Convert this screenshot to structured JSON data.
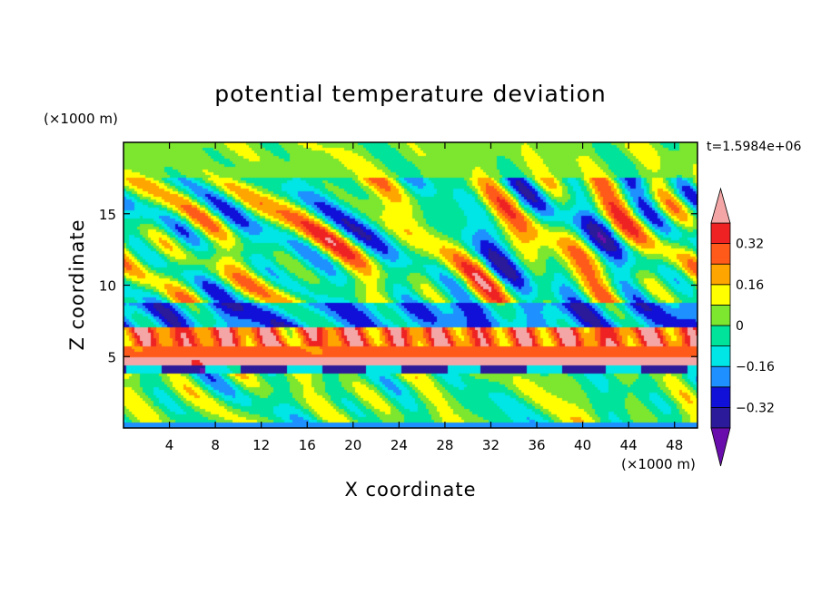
{
  "chart_data": {
    "type": "heatmap",
    "title": "potential temperature deviation",
    "xlabel": "X coordinate",
    "ylabel": "Z coordinate",
    "x_unit": "(×1000 m)",
    "y_unit": "(×1000 m)",
    "time_label": "t=1.5984e+06",
    "xlim": [
      0,
      50
    ],
    "ylim": [
      0,
      20
    ],
    "x_ticks": [
      4,
      8,
      12,
      16,
      20,
      24,
      28,
      32,
      36,
      40,
      44,
      48
    ],
    "y_ticks": [
      5,
      10,
      15
    ],
    "colorbar": {
      "levels": [
        -0.4,
        -0.32,
        -0.24,
        -0.16,
        -0.08,
        0,
        0.08,
        0.16,
        0.24,
        0.32,
        0.4
      ],
      "tick_values": [
        0.32,
        0.16,
        0,
        -0.16,
        -0.32
      ],
      "tick_labels": [
        "0.32",
        "0.16",
        "0",
        "−0.16",
        "−0.32"
      ],
      "extend": "both",
      "colors": [
        "#6a0dad",
        "#2b1a99",
        "#1010d8",
        "#1e90ff",
        "#00e5e5",
        "#00e39a",
        "#7de62e",
        "#ffff00",
        "#ffa500",
        "#ff5a1a",
        "#ee2222",
        "#f4a6a6"
      ]
    },
    "layers": [
      {
        "z": [
          0.0,
          0.4
        ],
        "description": "surface band",
        "value": -0.2
      },
      {
        "z": [
          0.4,
          3.8
        ],
        "description": "lower turbulent layer",
        "value_range": [
          -0.3,
          0.35
        ]
      },
      {
        "z": [
          3.8,
          5.0
        ],
        "description": "cold band",
        "value": -0.36
      },
      {
        "z": [
          5.0,
          7.0
        ],
        "description": "warm band",
        "value": 0.3
      },
      {
        "z": [
          7.0,
          10.0
        ],
        "description": "mixed layer",
        "value_range": [
          -0.4,
          0.4
        ]
      },
      {
        "z": [
          10.0,
          17.5
        ],
        "description": "wave layer",
        "value_range": [
          -0.4,
          0.4
        ]
      },
      {
        "z": [
          17.5,
          20.0
        ],
        "description": "upper layer",
        "value": 0.05
      }
    ]
  }
}
